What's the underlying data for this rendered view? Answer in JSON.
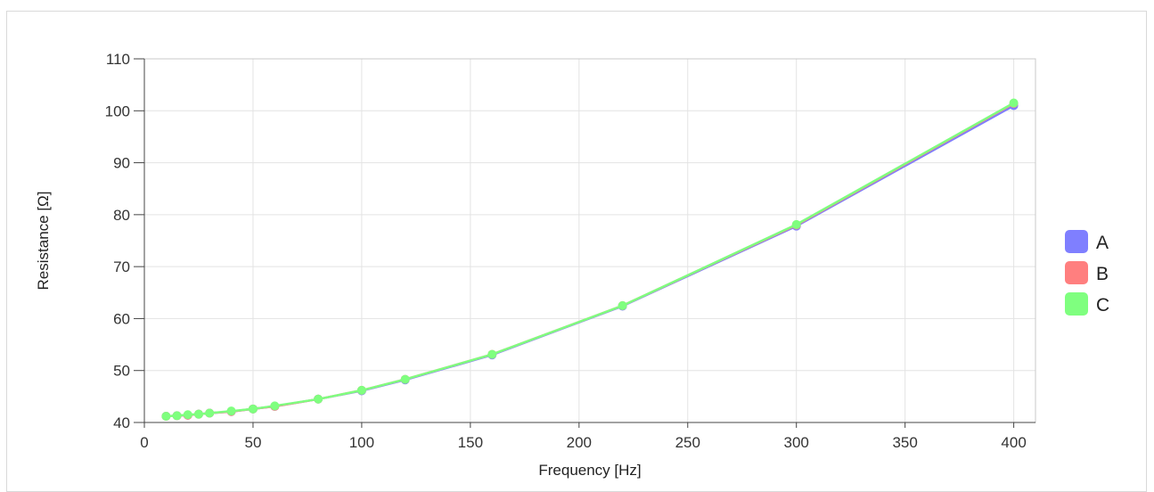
{
  "chart_data": {
    "type": "line",
    "title": "",
    "xlabel": "Frequency [Hz]",
    "ylabel": "Resistance [Ω]",
    "xlim": [
      0,
      410
    ],
    "ylim": [
      40,
      110
    ],
    "xticks": [
      0,
      50,
      100,
      150,
      200,
      250,
      300,
      350,
      400
    ],
    "yticks": [
      40,
      50,
      60,
      70,
      80,
      90,
      100,
      110
    ],
    "grid": true,
    "legend_position": "right",
    "x": [
      10,
      15,
      20,
      25,
      30,
      40,
      50,
      60,
      80,
      100,
      120,
      160,
      220,
      300,
      400
    ],
    "series": [
      {
        "name": "A",
        "color": "#7f7fff",
        "values": [
          41.2,
          41.3,
          41.4,
          41.6,
          41.8,
          42.1,
          42.6,
          43.1,
          44.5,
          46.1,
          48.2,
          53.0,
          62.4,
          77.8,
          101.0
        ]
      },
      {
        "name": "B",
        "color": "#ff7f7f",
        "values": [
          41.2,
          41.3,
          41.4,
          41.6,
          41.8,
          42.1,
          42.6,
          43.1,
          44.5,
          46.2,
          48.3,
          53.1,
          62.5,
          78.0,
          101.4
        ]
      },
      {
        "name": "C",
        "color": "#7fff7f",
        "values": [
          41.2,
          41.3,
          41.5,
          41.6,
          41.8,
          42.2,
          42.6,
          43.2,
          44.5,
          46.2,
          48.3,
          53.1,
          62.5,
          78.1,
          101.5
        ]
      }
    ]
  }
}
